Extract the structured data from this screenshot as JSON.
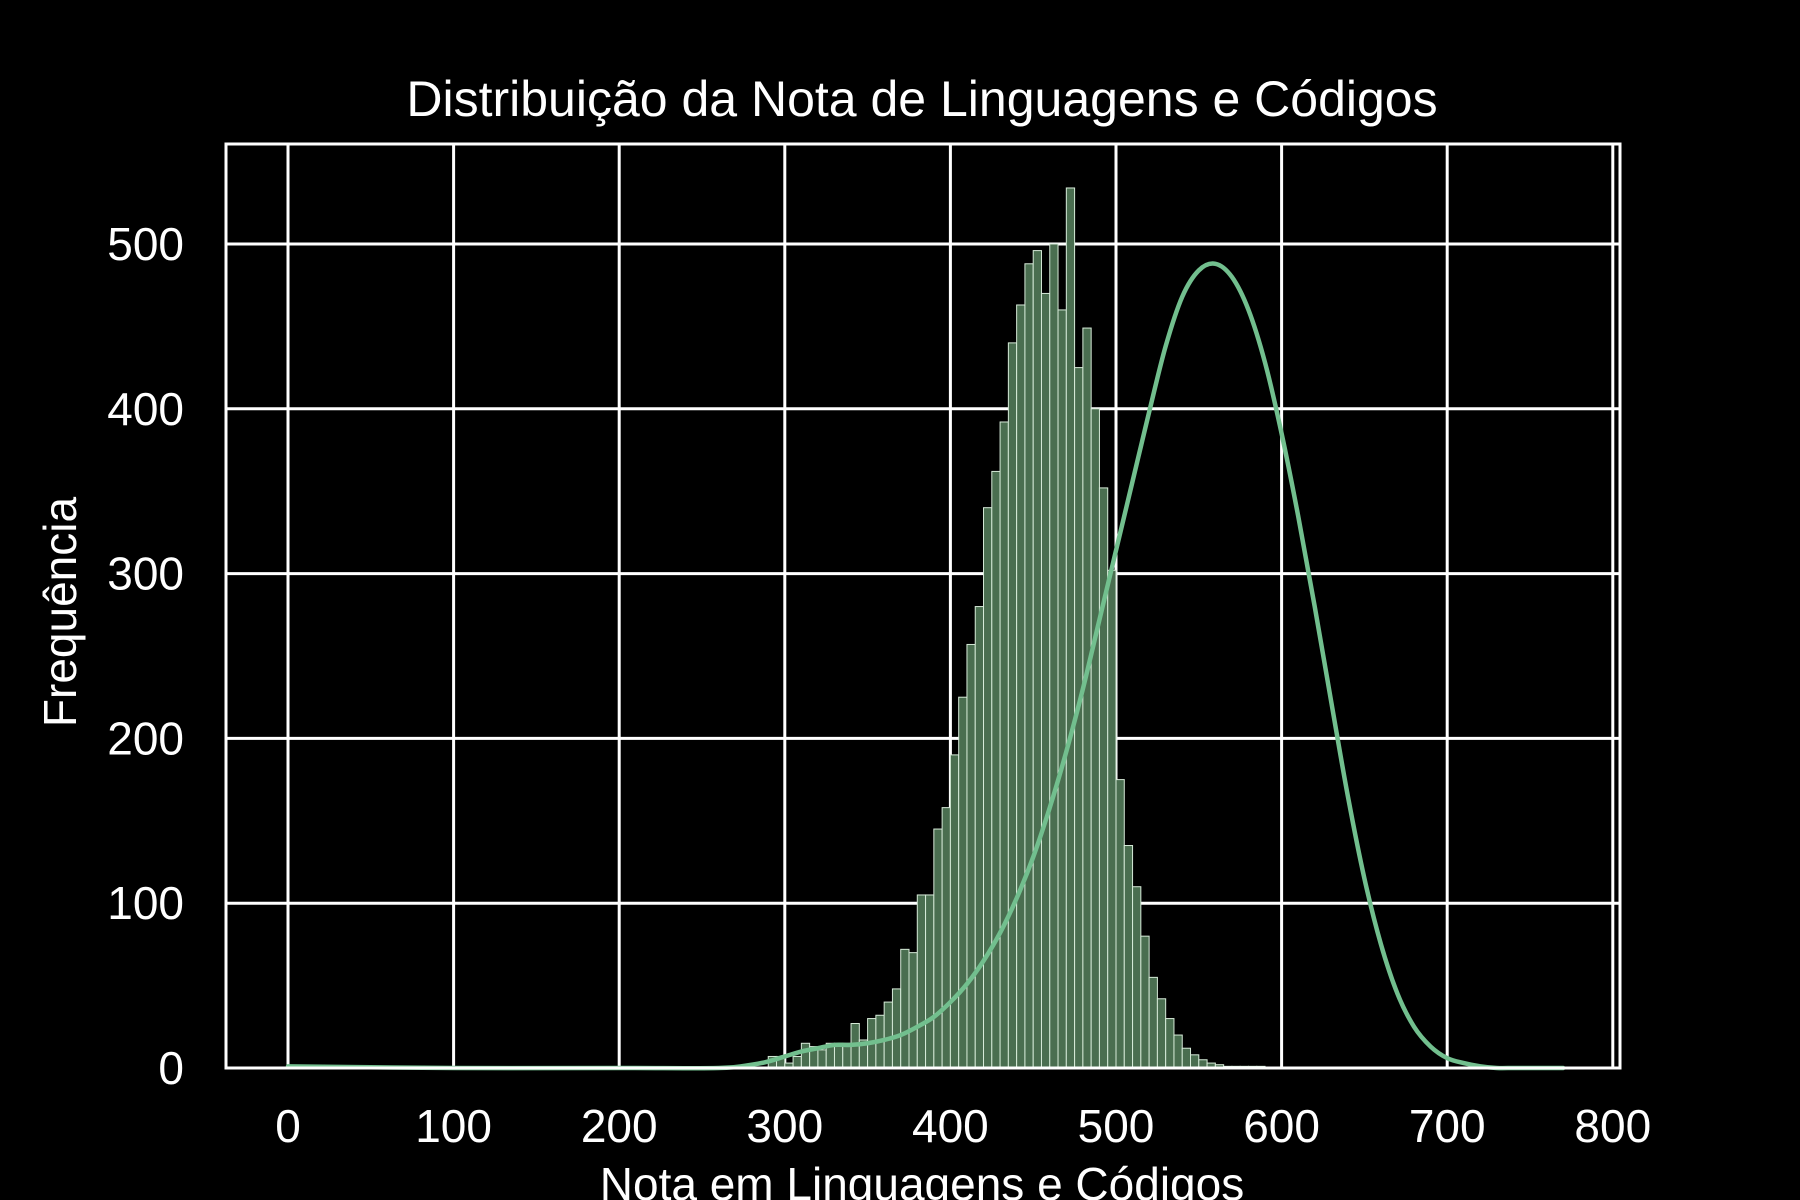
{
  "chart_data": {
    "type": "bar",
    "subtype": "histogram_with_kde",
    "title": "Distribuição da Nota de Linguagens e Códigos",
    "xlabel": "Nota em Linguagens e Códigos",
    "ylabel": "Frequência",
    "xlim": [
      -40,
      805
    ],
    "ylim": [
      0,
      560
    ],
    "xticks": [
      0,
      100,
      200,
      300,
      400,
      500,
      600,
      700,
      800
    ],
    "yticks": [
      0,
      100,
      200,
      300,
      400,
      500
    ],
    "grid": true,
    "legend": "none",
    "colors": {
      "background": "#000000",
      "axes_frame": "#ffffff",
      "grid": "#ffffff",
      "bar_fill": "#4a6e50",
      "bar_edge": "#d6ead8",
      "kde_line": "#72bf8e",
      "text": "#ffffff"
    },
    "bins": {
      "start": 290,
      "width": 5,
      "counts": [
        7,
        7,
        3,
        7,
        15,
        13,
        11,
        15,
        15,
        15,
        27,
        17,
        30,
        32,
        40,
        48,
        72,
        70,
        105,
        105,
        145,
        158,
        190,
        225,
        257,
        280,
        340,
        362,
        392,
        440,
        463,
        488,
        496,
        470,
        500,
        460,
        534,
        425,
        449,
        400,
        352,
        302,
        175,
        135,
        110,
        80,
        55,
        42,
        30,
        20,
        12,
        8,
        5,
        3,
        2,
        1,
        1,
        1,
        1,
        1
      ]
    },
    "kde": {
      "x": [
        0,
        100,
        200,
        260,
        280,
        290,
        300,
        310,
        320,
        330,
        340,
        350,
        360,
        370,
        380,
        390,
        400,
        410,
        420,
        430,
        440,
        450,
        460,
        470,
        480,
        490,
        500,
        510,
        520,
        530,
        540,
        550,
        560,
        570,
        580,
        590,
        600,
        610,
        620,
        630,
        640,
        650,
        660,
        670,
        680,
        690,
        700,
        710,
        720,
        730,
        740,
        750,
        760,
        770
      ],
      "y": [
        1,
        0,
        0,
        0,
        2,
        4,
        7,
        10,
        12,
        14,
        14,
        15,
        17,
        20,
        25,
        31,
        40,
        51,
        65,
        82,
        103,
        128,
        158,
        192,
        230,
        272,
        314,
        356,
        398,
        438,
        468,
        484,
        488,
        480,
        460,
        428,
        385,
        335,
        280,
        222,
        165,
        115,
        75,
        45,
        25,
        13,
        6,
        3,
        1,
        0,
        0,
        0,
        0,
        0
      ]
    }
  }
}
